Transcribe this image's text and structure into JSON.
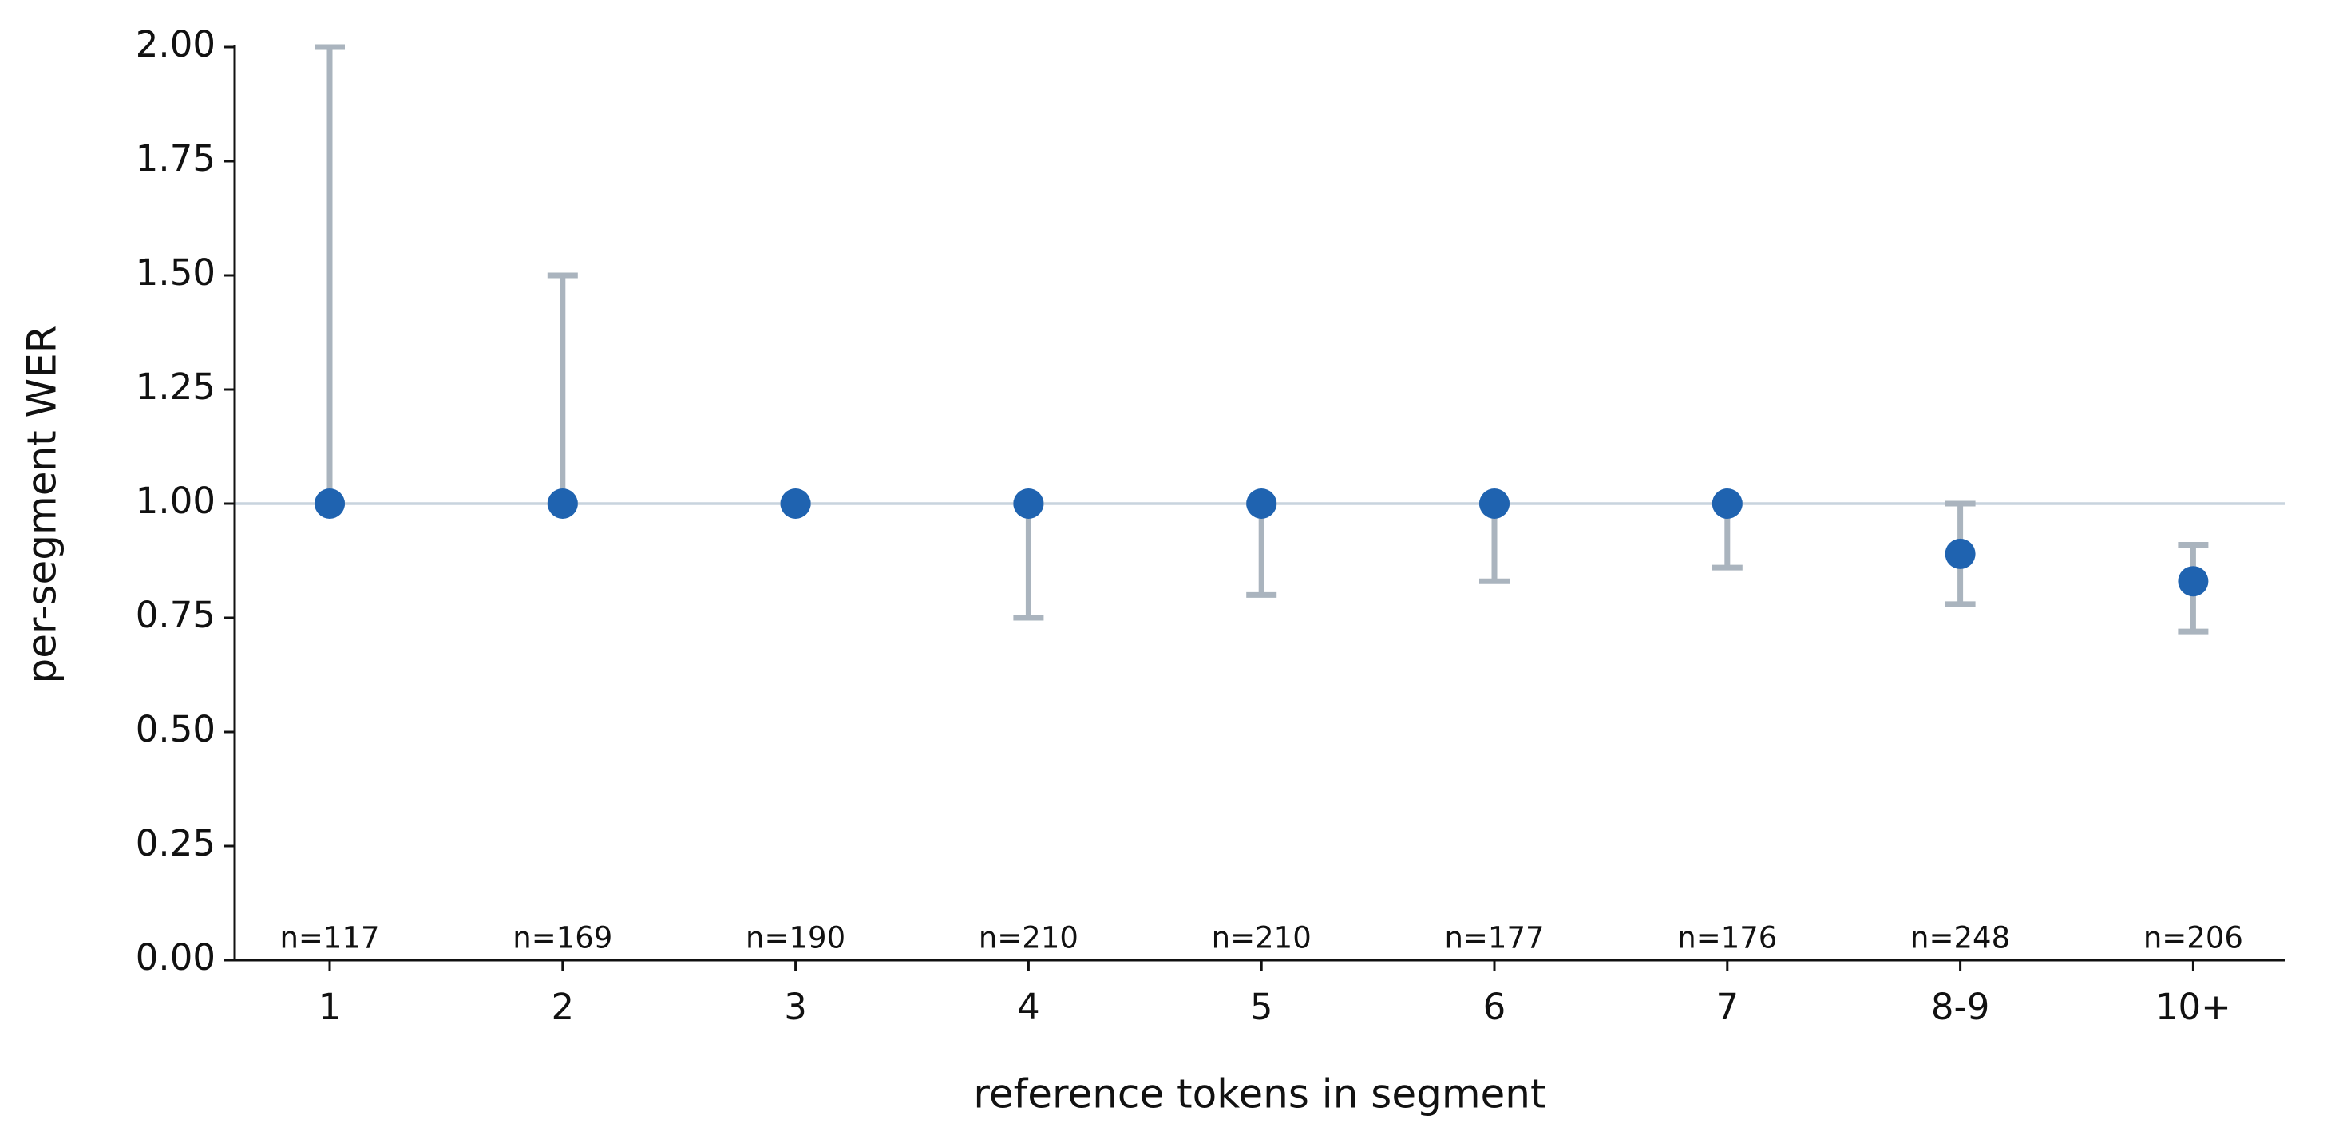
{
  "chart_data": {
    "type": "errorbar",
    "x_label": "reference tokens in segment",
    "y_label": "per-segment WER",
    "categories": [
      "1",
      "2",
      "3",
      "4",
      "5",
      "6",
      "7",
      "8-9",
      "10+"
    ],
    "values": [
      1,
      1,
      1,
      1,
      1,
      1,
      1,
      0.89,
      0.83
    ],
    "lower": [
      1,
      1,
      1,
      0.75,
      0.8,
      0.83,
      0.86,
      0.78,
      0.72
    ],
    "upper": [
      2,
      1.5,
      1,
      1,
      1,
      1,
      1,
      1,
      0.91
    ],
    "annotations": [
      "n=117",
      "n=169",
      "n=190",
      "n=210",
      "n=210",
      "n=177",
      "n=176",
      "n=248",
      "n=206"
    ],
    "reference_line": 1,
    "color": "#1f63b0",
    "error_color": "#aab4be",
    "reference_color": "#c8d4de",
    "ylim": [
      0,
      2
    ],
    "yticks": [
      {
        "value": 0,
        "label": "0.00"
      },
      {
        "value": 0.25,
        "label": "0.25"
      },
      {
        "value": 0.5,
        "label": "0.50"
      },
      {
        "value": 0.75,
        "label": "0.75"
      },
      {
        "value": 1,
        "label": "1.00"
      },
      {
        "value": 1.25,
        "label": "1.25"
      },
      {
        "value": 1.5,
        "label": "1.50"
      },
      {
        "value": 1.75,
        "label": "1.75"
      },
      {
        "value": 2,
        "label": "2.00"
      }
    ]
  }
}
